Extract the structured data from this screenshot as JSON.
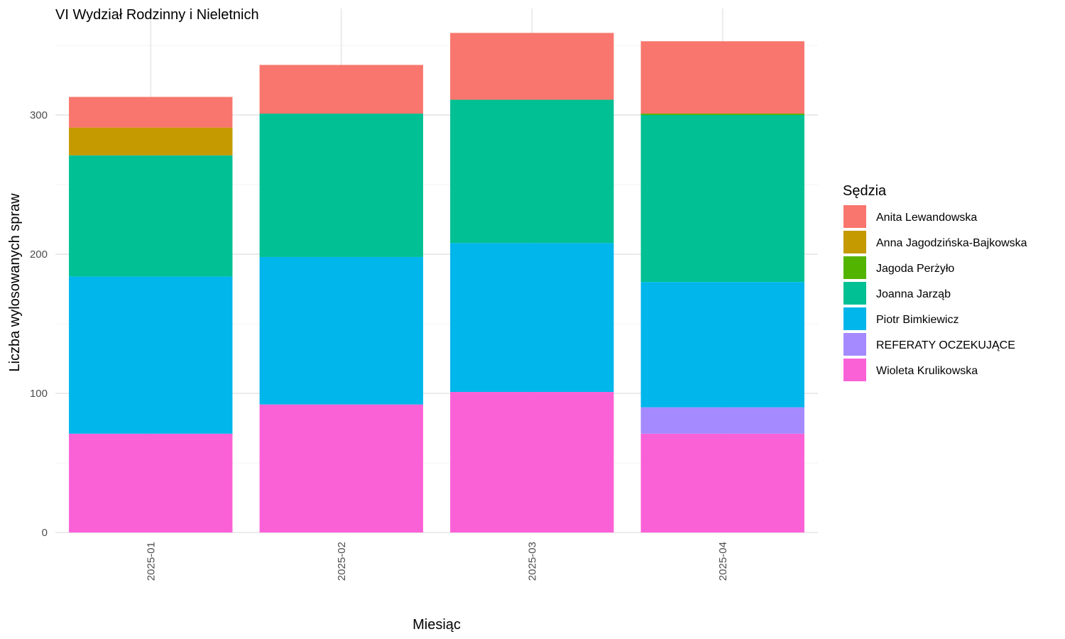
{
  "chart_data": {
    "type": "bar",
    "stacked": true,
    "title": "VI Wydział Rodzinny i Nieletnich",
    "xlabel": "Miesiąc",
    "ylabel": "Liczba wylosowanych spraw",
    "categories": [
      "2025-01",
      "2025-02",
      "2025-03",
      "2025-04"
    ],
    "ylim": [
      0,
      375
    ],
    "yticks": [
      0,
      100,
      200,
      300
    ],
    "grid": true,
    "legend_title": "Sędzia",
    "legend_position": "right",
    "stack_order": [
      "Wioleta Krulikowska",
      "REFERATY OCZEKUJĄCE",
      "Piotr Bimkiewicz",
      "Joanna Jarząb",
      "Jagoda Perżyło",
      "Anna Jagodzińska-Bajkowska",
      "Anita Lewandowska"
    ],
    "series": [
      {
        "name": "Anita Lewandowska",
        "color": "#F8766D",
        "values": [
          22,
          35,
          48,
          52
        ]
      },
      {
        "name": "Anna Jagodzińska-Bajkowska",
        "color": "#C49A00",
        "values": [
          20,
          0,
          0,
          0
        ]
      },
      {
        "name": "Jagoda Perżyło",
        "color": "#53B400",
        "values": [
          0,
          0,
          0,
          1
        ]
      },
      {
        "name": "Joanna Jarząb",
        "color": "#00C094",
        "values": [
          87,
          103,
          103,
          120
        ]
      },
      {
        "name": "Piotr Bimkiewicz",
        "color": "#00B6EB",
        "values": [
          113,
          106,
          107,
          90
        ]
      },
      {
        "name": "REFERATY OCZEKUJĄCE",
        "color": "#A58AFF",
        "values": [
          0,
          0,
          0,
          19
        ]
      },
      {
        "name": "Wioleta Krulikowska",
        "color": "#FB61D7",
        "values": [
          71,
          92,
          101,
          71
        ]
      }
    ]
  }
}
